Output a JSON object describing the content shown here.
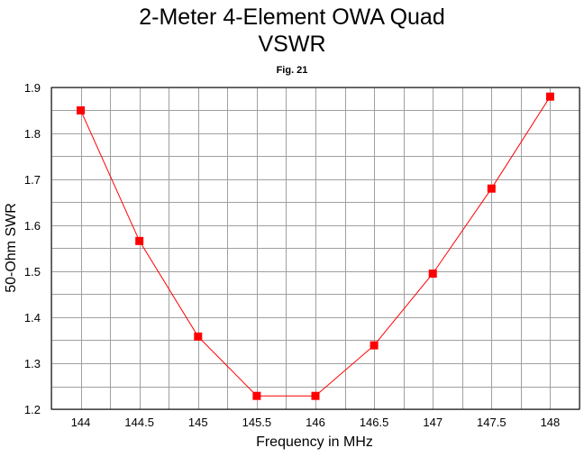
{
  "chart_data": {
    "type": "line",
    "title": "2-Meter 4-Element OWA Quad",
    "title_line2": "VSWR",
    "subtitle": "Fig. 21",
    "xlabel": "Frequency in MHz",
    "ylabel": "50-Ohm SWR",
    "xlim": [
      143.75,
      148.25
    ],
    "ylim": [
      1.2,
      1.9
    ],
    "x_ticks": [
      "144",
      "144.5",
      "145",
      "145.5",
      "146",
      "146.5",
      "147",
      "147.5",
      "148"
    ],
    "y_ticks": [
      "1.9",
      "1.8",
      "1.7",
      "1.6",
      "1.5",
      "1.4",
      "1.3",
      "1.2"
    ],
    "grid": true,
    "series": [
      {
        "color": "#ff0000",
        "marker": "square",
        "x": [
          144,
          144.5,
          145,
          145.5,
          146,
          146.5,
          147,
          147.5,
          148
        ],
        "y": [
          1.85,
          1.566,
          1.358,
          1.229,
          1.229,
          1.339,
          1.495,
          1.68,
          1.88
        ]
      }
    ],
    "colors": {
      "grid": "#a0a0a0",
      "frame": "#000000",
      "series": "#ff0000"
    }
  }
}
